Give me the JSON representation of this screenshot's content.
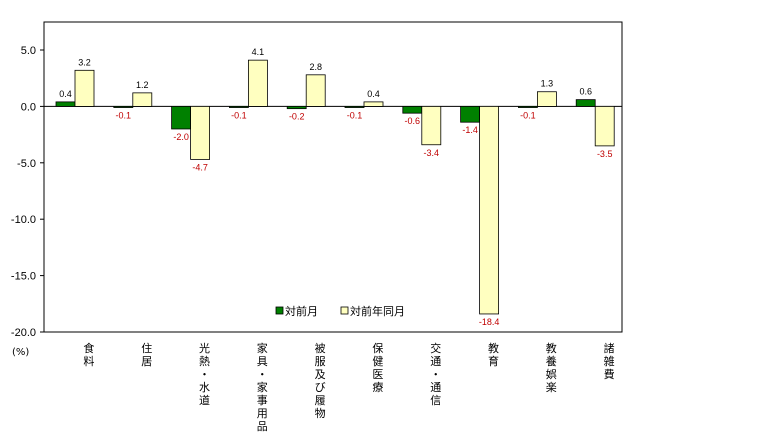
{
  "chart_data": {
    "type": "bar",
    "unit_label": "(%)",
    "categories": [
      "食料",
      "住居",
      "光熱・水道",
      "家具・家事用品",
      "被服及び履物",
      "保健医療",
      "交通・通信",
      "教育",
      "教養娯楽",
      "諸雑費"
    ],
    "series": [
      {
        "name": "対前月",
        "color": "#008000",
        "values": [
          0.4,
          -0.1,
          -2.0,
          -0.1,
          -0.2,
          -0.1,
          -0.6,
          -1.4,
          -0.1,
          0.6
        ],
        "labels": [
          "0.4",
          "-0.1",
          "-2.0",
          "-0.1",
          "-0.2",
          "-0.1",
          "-0.6",
          "-1.4",
          "-0.1",
          "0.6"
        ]
      },
      {
        "name": "対前年同月",
        "color": "#FFFFC0",
        "values": [
          3.2,
          1.2,
          -4.7,
          4.1,
          2.8,
          0.4,
          -3.4,
          -18.4,
          1.3,
          -3.5
        ],
        "labels": [
          "3.2",
          "1.2",
          "-4.7",
          "4.1",
          "2.8",
          "0.4",
          "-3.4",
          "-18.4",
          "1.3",
          "-3.5"
        ]
      }
    ],
    "ylim": [
      -20,
      7.5
    ],
    "yticks": [
      "5.0",
      "0.0",
      "-5.0",
      "-10.0",
      "-15.0",
      "-20.0"
    ],
    "ytick_values": [
      5,
      0,
      -5,
      -10,
      -15,
      -20
    ],
    "negative_label_color": "#C00000",
    "positive_label_color": "#000000",
    "legend_position": "bottom-center",
    "grid": false
  }
}
